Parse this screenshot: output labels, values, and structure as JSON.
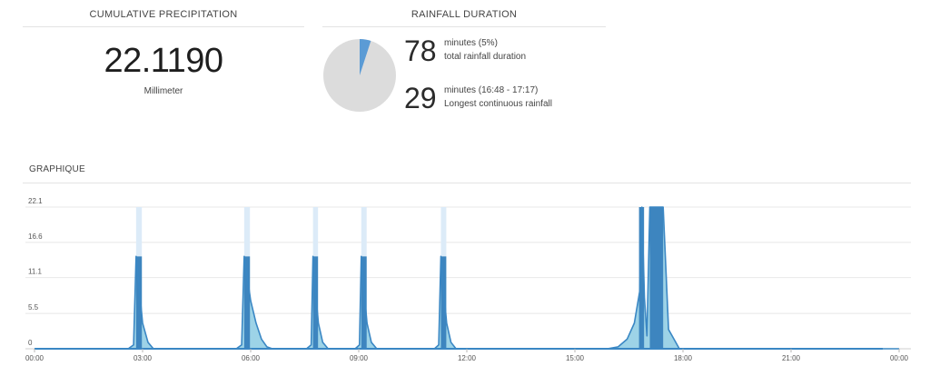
{
  "cumulative": {
    "title": "CUMULATIVE PRECIPITATION",
    "value": "22.1190",
    "unit": "Millimeter"
  },
  "duration": {
    "title": "RAINFALL DURATION",
    "pie_fraction": 0.05,
    "colors": {
      "rain": "#5b9bd5",
      "dry": "#dcdcdc"
    },
    "total": {
      "value": "78",
      "line1": "minutes (5%)",
      "line2": "total rainfall duration"
    },
    "longest": {
      "value": "29",
      "line1": "minutes (16:48 - 17:17)",
      "line2": "Longest continuous rainfall"
    }
  },
  "graph": {
    "title": "GRAPHIQUE"
  },
  "chart_data": {
    "type": "area",
    "xlabel": "",
    "ylabel": "",
    "x_unit": "hours",
    "xlim": [
      0,
      24
    ],
    "ylim": [
      0,
      22.1
    ],
    "y_ticks": [
      "22.1",
      "16.6",
      "11.1",
      "5.5",
      "0"
    ],
    "y_tick_values": [
      22.1,
      16.6,
      11.1,
      5.5,
      0
    ],
    "x_ticks": [
      "00:00",
      "03:00",
      "06:00",
      "09:00",
      "12:00",
      "15:00",
      "18:00",
      "21:00",
      "00:00"
    ],
    "x_tick_values": [
      0,
      3,
      6,
      9,
      12,
      15,
      18,
      21,
      24
    ],
    "grid": true,
    "colors": {
      "line": "#3a87c4",
      "bar": "#3d85bf",
      "area": "#8ccbe3",
      "band": "#dcebf8"
    },
    "bands": [
      {
        "start": 2.82,
        "end": 2.98
      },
      {
        "start": 5.82,
        "end": 5.98
      },
      {
        "start": 7.73,
        "end": 7.87
      },
      {
        "start": 9.07,
        "end": 9.22
      },
      {
        "start": 11.28,
        "end": 11.43
      }
    ],
    "bars": [
      {
        "start": 2.82,
        "end": 2.98,
        "value": 14.4
      },
      {
        "start": 5.82,
        "end": 5.98,
        "value": 14.4
      },
      {
        "start": 7.73,
        "end": 7.87,
        "value": 14.4
      },
      {
        "start": 9.07,
        "end": 9.22,
        "value": 14.4
      },
      {
        "start": 11.28,
        "end": 11.43,
        "value": 14.4
      },
      {
        "start": 16.78,
        "end": 16.92,
        "value": 22.1
      },
      {
        "start": 17.08,
        "end": 17.45,
        "value": 22.1
      }
    ],
    "series": [
      {
        "x": [
          0,
          2.6,
          2.75,
          2.82,
          2.9,
          3.0,
          3.15,
          3.3,
          5.6,
          5.75,
          5.82,
          5.9,
          6.0,
          6.15,
          6.3,
          6.45,
          6.6,
          7.55,
          7.68,
          7.73,
          7.8,
          7.88,
          8.0,
          8.15,
          8.9,
          9.02,
          9.07,
          9.15,
          9.23,
          9.35,
          9.5,
          11.1,
          11.22,
          11.28,
          11.36,
          11.44,
          11.56,
          11.7,
          15.9,
          16.2,
          16.45,
          16.65,
          16.8,
          16.86,
          16.93,
          17.0,
          17.08,
          17.25,
          17.45,
          17.6,
          17.75,
          17.9,
          24
        ],
        "y": [
          0,
          0,
          0.6,
          14.4,
          10.0,
          4.0,
          1.0,
          0,
          0,
          0.6,
          14.4,
          11.5,
          7.5,
          4.0,
          1.5,
          0.3,
          0,
          0,
          0.6,
          14.4,
          9.0,
          4.0,
          1.0,
          0,
          0,
          0.6,
          14.4,
          9.0,
          4.0,
          1.0,
          0,
          0,
          0.6,
          14.4,
          9.0,
          4.0,
          1.0,
          0,
          0,
          0.3,
          1.5,
          4.0,
          9.0,
          22.1,
          8.0,
          2.0,
          22.1,
          22.1,
          22.1,
          3.0,
          1.5,
          0,
          0
        ]
      }
    ]
  }
}
